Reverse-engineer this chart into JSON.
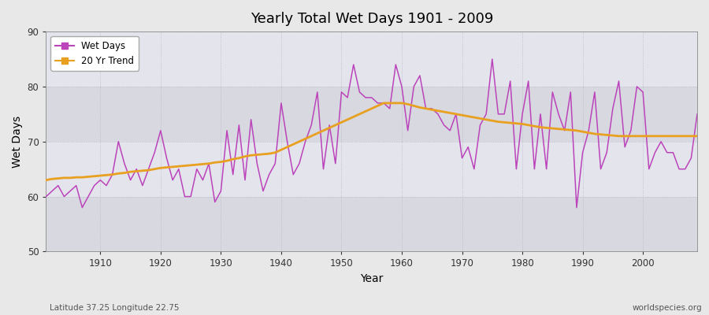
{
  "title": "Yearly Total Wet Days 1901 - 2009",
  "xlabel": "Year",
  "ylabel": "Wet Days",
  "xlim": [
    1901,
    2009
  ],
  "ylim": [
    50,
    90
  ],
  "yticks": [
    50,
    60,
    70,
    80,
    90
  ],
  "xticks": [
    1910,
    1920,
    1930,
    1940,
    1950,
    1960,
    1970,
    1980,
    1990,
    2000
  ],
  "bg_color": "#e8e8e8",
  "band_light": "#e0e0e8",
  "band_dark": "#d0d0dc",
  "grid_color": "#c8c8d8",
  "wet_days_color": "#bb44bb",
  "trend_color": "#e8a020",
  "bottom_left_text": "Latitude 37.25 Longitude 22.75",
  "bottom_right_text": "worldspecies.org",
  "legend_wet_days": "Wet Days",
  "legend_trend": "20 Yr Trend",
  "years": [
    1901,
    1902,
    1903,
    1904,
    1905,
    1906,
    1907,
    1908,
    1909,
    1910,
    1911,
    1912,
    1913,
    1914,
    1915,
    1916,
    1917,
    1918,
    1919,
    1920,
    1921,
    1922,
    1923,
    1924,
    1925,
    1926,
    1927,
    1928,
    1929,
    1930,
    1931,
    1932,
    1933,
    1934,
    1935,
    1936,
    1937,
    1938,
    1939,
    1940,
    1941,
    1942,
    1943,
    1944,
    1945,
    1946,
    1947,
    1948,
    1949,
    1950,
    1951,
    1952,
    1953,
    1954,
    1955,
    1956,
    1957,
    1958,
    1959,
    1960,
    1961,
    1962,
    1963,
    1964,
    1965,
    1966,
    1967,
    1968,
    1969,
    1970,
    1971,
    1972,
    1973,
    1974,
    1975,
    1976,
    1977,
    1978,
    1979,
    1980,
    1981,
    1982,
    1983,
    1984,
    1985,
    1986,
    1987,
    1988,
    1989,
    1990,
    1991,
    1992,
    1993,
    1994,
    1995,
    1996,
    1997,
    1998,
    1999,
    2000,
    2001,
    2002,
    2003,
    2004,
    2005,
    2006,
    2007,
    2008,
    2009
  ],
  "wet_days": [
    60,
    61,
    62,
    60,
    61,
    62,
    58,
    60,
    62,
    63,
    62,
    64,
    70,
    66,
    63,
    65,
    62,
    65,
    68,
    72,
    67,
    63,
    65,
    60,
    60,
    65,
    63,
    66,
    59,
    61,
    72,
    64,
    73,
    63,
    74,
    66,
    61,
    64,
    66,
    77,
    70,
    64,
    66,
    70,
    73,
    79,
    65,
    73,
    66,
    79,
    78,
    84,
    79,
    78,
    78,
    77,
    77,
    76,
    84,
    80,
    72,
    80,
    82,
    76,
    76,
    75,
    73,
    72,
    75,
    67,
    69,
    65,
    73,
    75,
    85,
    75,
    75,
    81,
    65,
    75,
    81,
    65,
    75,
    65,
    79,
    75,
    72,
    79,
    58,
    68,
    72,
    79,
    65,
    68,
    76,
    81,
    69,
    72,
    80,
    79,
    65,
    68,
    70,
    68,
    68,
    65,
    65,
    67,
    75
  ],
  "trend_years": [
    1901,
    1902,
    1903,
    1904,
    1905,
    1906,
    1907,
    1908,
    1909,
    1910,
    1911,
    1912,
    1913,
    1914,
    1915,
    1916,
    1917,
    1918,
    1919,
    1920,
    1921,
    1922,
    1923,
    1924,
    1925,
    1926,
    1927,
    1928,
    1929,
    1930,
    1931,
    1932,
    1933,
    1934,
    1935,
    1936,
    1937,
    1938,
    1939,
    1940,
    1941,
    1942,
    1943,
    1944,
    1945,
    1946,
    1947,
    1948,
    1949,
    1950,
    1951,
    1952,
    1953,
    1954,
    1955,
    1956,
    1957,
    1958,
    1959,
    1960,
    1961,
    1962,
    1963,
    1964,
    1965,
    1966,
    1967,
    1968,
    1969,
    1970,
    1971,
    1972,
    1973,
    1974,
    1975,
    1976,
    1977,
    1978,
    1979,
    1980,
    1981,
    1982,
    1983,
    1984,
    1985,
    1986,
    1987,
    1988,
    1989,
    1990,
    1991,
    1992,
    1993,
    1994,
    1995,
    1996,
    1997,
    1998,
    1999,
    2000,
    2001,
    2002,
    2003,
    2004,
    2005,
    2006,
    2007,
    2008,
    2009
  ],
  "trend_values": [
    63.0,
    63.2,
    63.3,
    63.4,
    63.4,
    63.5,
    63.5,
    63.6,
    63.7,
    63.8,
    63.9,
    64.0,
    64.2,
    64.3,
    64.5,
    64.6,
    64.7,
    64.8,
    65.0,
    65.2,
    65.3,
    65.4,
    65.5,
    65.6,
    65.7,
    65.8,
    65.9,
    66.0,
    66.2,
    66.3,
    66.5,
    66.8,
    67.0,
    67.3,
    67.5,
    67.6,
    67.7,
    67.8,
    68.0,
    68.5,
    69.0,
    69.5,
    70.0,
    70.5,
    71.0,
    71.5,
    72.0,
    72.5,
    73.0,
    73.5,
    74.0,
    74.5,
    75.0,
    75.5,
    76.0,
    76.5,
    77.0,
    77.0,
    77.0,
    77.0,
    76.8,
    76.5,
    76.2,
    76.0,
    75.8,
    75.6,
    75.4,
    75.2,
    75.0,
    74.8,
    74.6,
    74.4,
    74.2,
    74.0,
    73.8,
    73.6,
    73.5,
    73.4,
    73.3,
    73.2,
    73.0,
    72.8,
    72.6,
    72.5,
    72.4,
    72.3,
    72.2,
    72.1,
    72.0,
    71.8,
    71.6,
    71.4,
    71.3,
    71.2,
    71.1,
    71.0,
    71.0,
    71.0,
    71.0,
    71.0,
    71.0,
    71.0,
    71.0,
    71.0,
    71.0,
    71.0,
    71.0,
    71.0,
    71.0
  ]
}
